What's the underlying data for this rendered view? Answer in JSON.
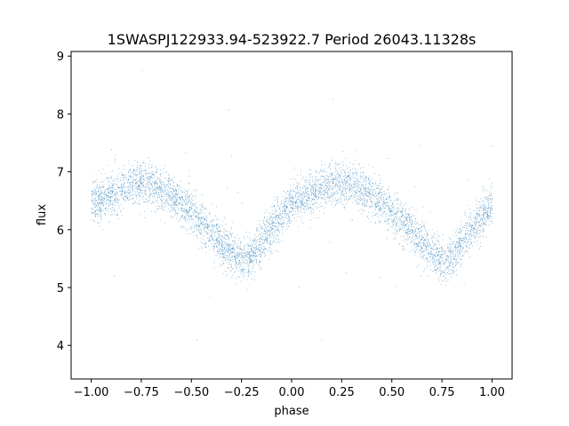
{
  "chart_data": {
    "type": "scatter",
    "title": "1SWASPJ122933.94-523922.7 Period 26043.11328s",
    "xlabel": "phase",
    "ylabel": "flux",
    "xlim": [
      -1.1,
      1.1
    ],
    "ylim": [
      3.42,
      9.08
    ],
    "xticks": [
      -1.0,
      -0.75,
      -0.5,
      -0.25,
      0.0,
      0.25,
      0.5,
      0.75,
      1.0
    ],
    "xtick_labels": [
      "−1.00",
      "−0.75",
      "−0.50",
      "−0.25",
      "0.00",
      "0.25",
      "0.50",
      "0.75",
      "1.00"
    ],
    "yticks": [
      4,
      5,
      6,
      7,
      8,
      9
    ],
    "ytick_labels": [
      "4",
      "5",
      "6",
      "7",
      "8",
      "9"
    ],
    "grid": false,
    "point_color": "#1f77b4",
    "phase_range": [
      -1.0,
      1.0
    ],
    "curve": {
      "description": "phase-folded light curve, period 1 in phase",
      "x": [
        -1.0,
        -0.9,
        -0.8,
        -0.75,
        -0.7,
        -0.6,
        -0.5,
        -0.4,
        -0.3,
        -0.25,
        -0.2,
        -0.1,
        0.0,
        0.1,
        0.2,
        0.25,
        0.3,
        0.4,
        0.5,
        0.6,
        0.7,
        0.75,
        0.8,
        0.9,
        1.0
      ],
      "y": [
        6.45,
        6.62,
        6.78,
        6.82,
        6.78,
        6.6,
        6.3,
        5.95,
        5.6,
        5.45,
        5.55,
        6.05,
        6.45,
        6.62,
        6.78,
        6.82,
        6.78,
        6.6,
        6.3,
        5.95,
        5.6,
        5.45,
        5.55,
        6.05,
        6.45
      ]
    },
    "scatter_sigma": 0.18,
    "outlier_fraction": 0.01,
    "n_points": 60000
  }
}
